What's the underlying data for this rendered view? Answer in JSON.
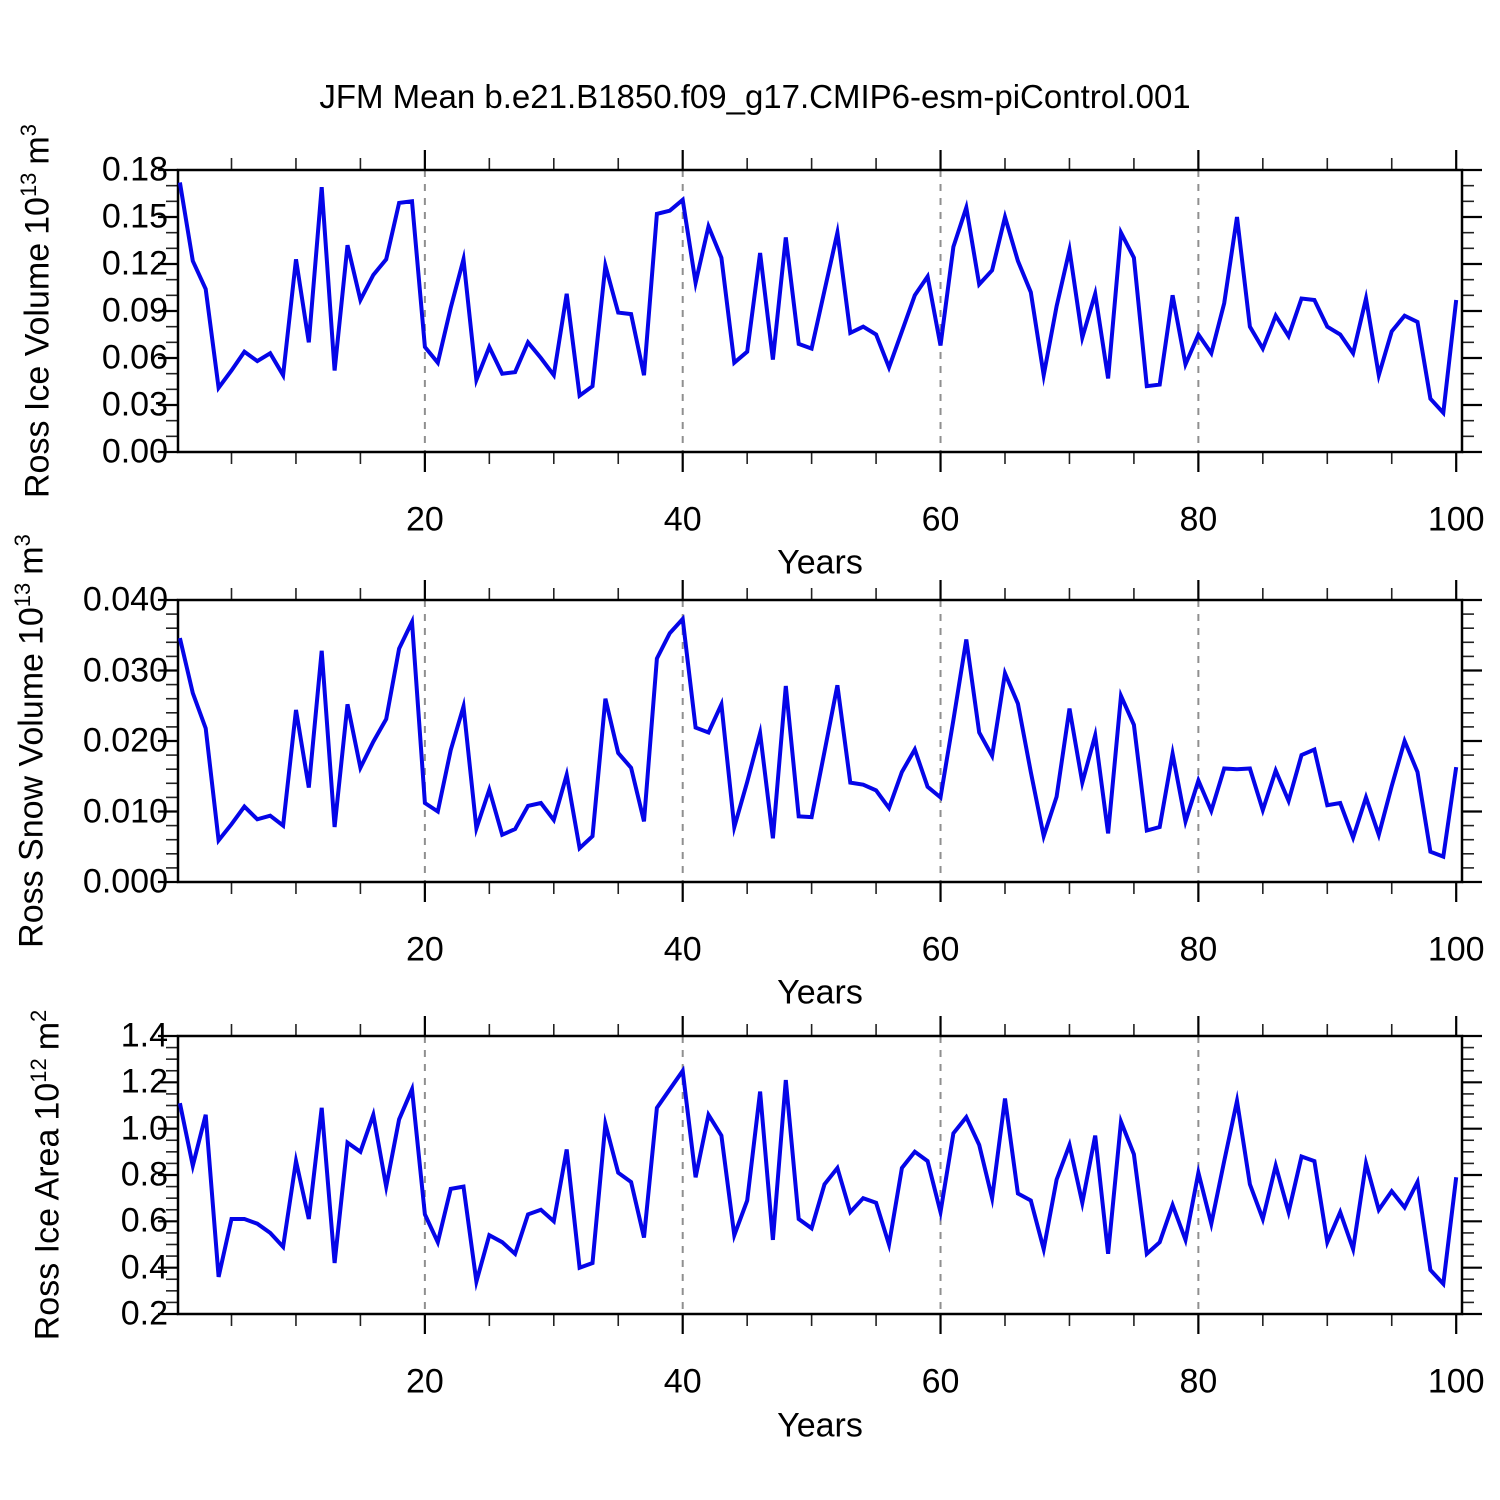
{
  "title": "JFM Mean b.e21.B1850.f09_g17.CMIP6-esm-piControl.001",
  "colors": {
    "line": "#0505E8",
    "grid": "#8f8f8f",
    "axis": "#000000",
    "background": "#ffffff"
  },
  "chart_data": [
    {
      "type": "line",
      "id": "ross-ice-volume",
      "ylabel_name": "Ross Ice Volume",
      "ylabel_factor": "10",
      "ylabel_factor_exp": "13",
      "ylabel_unit": "m",
      "ylabel_unit_exp": "3",
      "xlabel": "Years",
      "ylim": [
        0,
        0.18
      ],
      "yticks": [
        0.0,
        0.03,
        0.06,
        0.09,
        0.12,
        0.15,
        0.18
      ],
      "ytick_labels": [
        "0.00",
        "0.03",
        "0.06",
        "0.09",
        "0.12",
        "0.15",
        "0.18"
      ],
      "y_minor_step": 0.01,
      "xlim": [
        0.85,
        100.45
      ],
      "xticks": [
        20,
        40,
        60,
        80,
        100
      ],
      "xtick_labels": [
        "20",
        "40",
        "60",
        "80",
        "100"
      ],
      "x_minor_step": 5,
      "grid_x": [
        20,
        40,
        60,
        80
      ],
      "x_start_year": 1,
      "values": [
        0.172,
        0.122,
        0.104,
        0.041,
        0.052,
        0.064,
        0.058,
        0.063,
        0.049,
        0.123,
        0.07,
        0.169,
        0.052,
        0.132,
        0.097,
        0.113,
        0.123,
        0.159,
        0.16,
        0.067,
        0.057,
        0.092,
        0.123,
        0.046,
        0.067,
        0.05,
        0.051,
        0.07,
        0.06,
        0.049,
        0.101,
        0.036,
        0.042,
        0.119,
        0.089,
        0.088,
        0.049,
        0.152,
        0.154,
        0.161,
        0.108,
        0.144,
        0.124,
        0.057,
        0.064,
        0.127,
        0.059,
        0.137,
        0.069,
        0.066,
        0.103,
        0.14,
        0.076,
        0.08,
        0.075,
        0.054,
        0.077,
        0.1,
        0.112,
        0.068,
        0.131,
        0.156,
        0.107,
        0.116,
        0.15,
        0.122,
        0.102,
        0.049,
        0.093,
        0.129,
        0.073,
        0.101,
        0.047,
        0.14,
        0.124,
        0.042,
        0.043,
        0.1,
        0.056,
        0.075,
        0.063,
        0.095,
        0.15,
        0.08,
        0.066,
        0.087,
        0.074,
        0.098,
        0.097,
        0.08,
        0.075,
        0.063,
        0.098,
        0.049,
        0.077,
        0.087,
        0.083,
        0.034,
        0.025,
        0.097
      ]
    },
    {
      "type": "line",
      "id": "ross-snow-volume",
      "ylabel_name": "Ross Snow Volume",
      "ylabel_factor": "10",
      "ylabel_factor_exp": "13",
      "ylabel_unit": "m",
      "ylabel_unit_exp": "3",
      "xlabel": "Years",
      "ylim": [
        0,
        0.04
      ],
      "yticks": [
        0.0,
        0.01,
        0.02,
        0.03,
        0.04
      ],
      "ytick_labels": [
        "0.000",
        "0.010",
        "0.020",
        "0.030",
        "0.040"
      ],
      "y_minor_step": 0.002,
      "xlim": [
        0.85,
        100.45
      ],
      "xticks": [
        20,
        40,
        60,
        80,
        100
      ],
      "xtick_labels": [
        "20",
        "40",
        "60",
        "80",
        "100"
      ],
      "x_minor_step": 5,
      "grid_x": [
        20,
        40,
        60,
        80
      ],
      "x_start_year": 1,
      "values": [
        0.0346,
        0.0268,
        0.0218,
        0.0059,
        0.0082,
        0.0107,
        0.0089,
        0.0094,
        0.008,
        0.0244,
        0.0134,
        0.0328,
        0.0078,
        0.0252,
        0.0162,
        0.0199,
        0.0231,
        0.0331,
        0.0369,
        0.0112,
        0.01,
        0.0187,
        0.0249,
        0.0076,
        0.0131,
        0.0067,
        0.0075,
        0.0108,
        0.0112,
        0.0088,
        0.0152,
        0.0048,
        0.0065,
        0.026,
        0.0183,
        0.0162,
        0.0086,
        0.0317,
        0.0353,
        0.0373,
        0.0219,
        0.0212,
        0.0252,
        0.0078,
        0.0142,
        0.0211,
        0.0062,
        0.0278,
        0.0093,
        0.0092,
        0.0185,
        0.0279,
        0.0141,
        0.0138,
        0.013,
        0.0105,
        0.0156,
        0.0188,
        0.0135,
        0.012,
        0.023,
        0.0344,
        0.0212,
        0.0179,
        0.0296,
        0.0253,
        0.0156,
        0.0065,
        0.0121,
        0.0246,
        0.0141,
        0.0208,
        0.0069,
        0.0264,
        0.0223,
        0.0073,
        0.0078,
        0.0182,
        0.0086,
        0.0144,
        0.0101,
        0.0161,
        0.016,
        0.0161,
        0.0102,
        0.0158,
        0.0115,
        0.018,
        0.0188,
        0.0109,
        0.0112,
        0.0063,
        0.012,
        0.0067,
        0.0136,
        0.02,
        0.0156,
        0.0043,
        0.0036,
        0.0163
      ]
    },
    {
      "type": "line",
      "id": "ross-ice-area",
      "ylabel_name": "Ross Ice Area",
      "ylabel_factor": "10",
      "ylabel_factor_exp": "12",
      "ylabel_unit": "m",
      "ylabel_unit_exp": "2",
      "xlabel": "Years",
      "ylim": [
        0.2,
        1.4
      ],
      "yticks": [
        0.2,
        0.4,
        0.6,
        0.8,
        1.0,
        1.2,
        1.4
      ],
      "ytick_labels": [
        "0.2",
        "0.4",
        "0.6",
        "0.8",
        "1.0",
        "1.2",
        "1.4"
      ],
      "y_minor_step": 0.05,
      "xlim": [
        0.85,
        100.45
      ],
      "xticks": [
        20,
        40,
        60,
        80,
        100
      ],
      "xtick_labels": [
        "20",
        "40",
        "60",
        "80",
        "100"
      ],
      "x_minor_step": 5,
      "grid_x": [
        20,
        40,
        60,
        80
      ],
      "x_start_year": 1,
      "values": [
        1.11,
        0.84,
        1.06,
        0.36,
        0.61,
        0.61,
        0.59,
        0.55,
        0.49,
        0.86,
        0.61,
        1.09,
        0.42,
        0.94,
        0.9,
        1.06,
        0.75,
        1.04,
        1.17,
        0.63,
        0.51,
        0.74,
        0.75,
        0.34,
        0.54,
        0.51,
        0.46,
        0.63,
        0.65,
        0.6,
        0.91,
        0.4,
        0.42,
        1.02,
        0.81,
        0.77,
        0.53,
        1.09,
        1.17,
        1.25,
        0.79,
        1.06,
        0.97,
        0.54,
        0.69,
        1.16,
        0.52,
        1.21,
        0.61,
        0.57,
        0.76,
        0.83,
        0.64,
        0.7,
        0.68,
        0.5,
        0.83,
        0.9,
        0.86,
        0.64,
        0.98,
        1.05,
        0.93,
        0.7,
        1.13,
        0.72,
        0.69,
        0.48,
        0.78,
        0.93,
        0.68,
        0.97,
        0.46,
        1.03,
        0.89,
        0.46,
        0.51,
        0.67,
        0.52,
        0.81,
        0.59,
        0.86,
        1.12,
        0.76,
        0.61,
        0.84,
        0.64,
        0.88,
        0.86,
        0.51,
        0.64,
        0.48,
        0.85,
        0.65,
        0.73,
        0.66,
        0.77,
        0.39,
        0.33,
        0.79
      ]
    }
  ]
}
